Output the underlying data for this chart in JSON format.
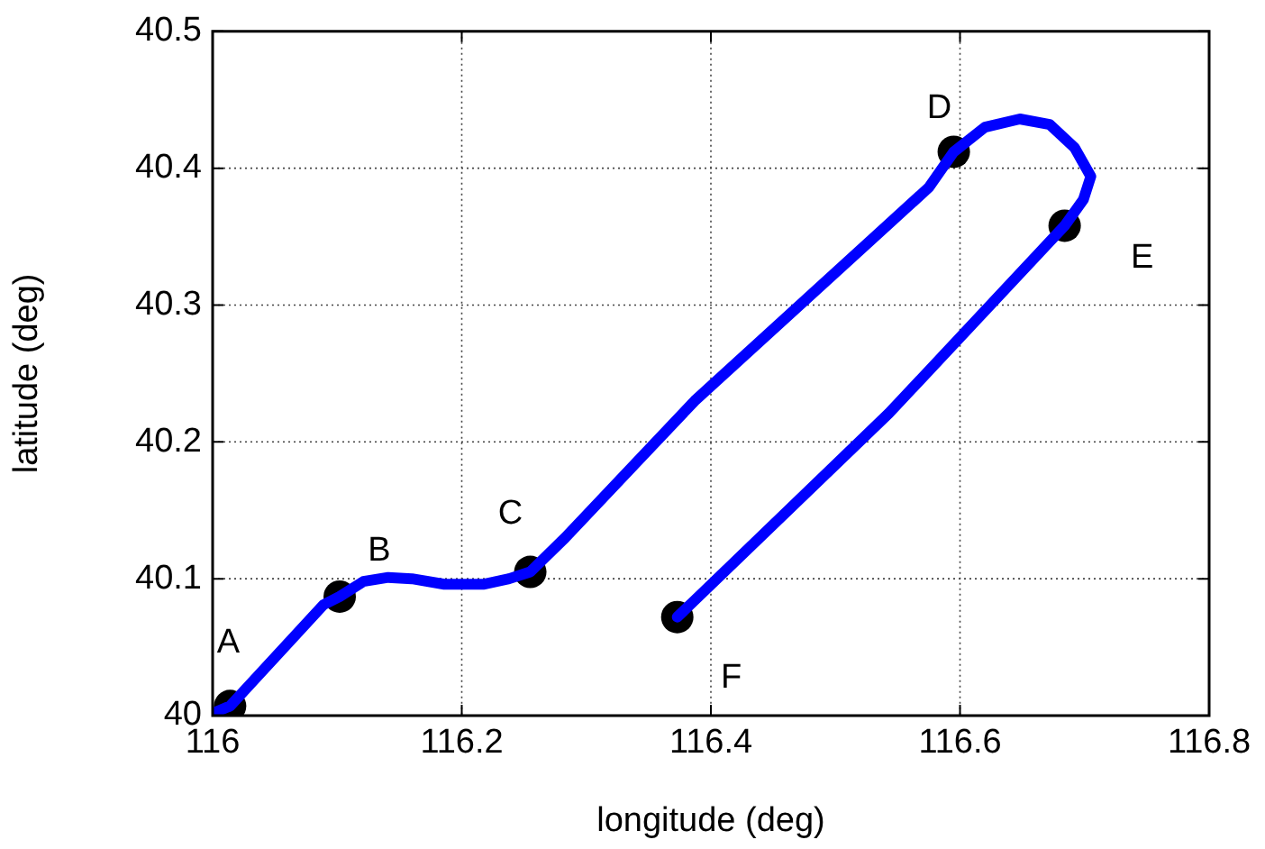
{
  "chart_data": {
    "type": "line",
    "xlabel": "longitude (deg)",
    "ylabel": "latitude (deg)",
    "xlim": [
      116,
      116.8
    ],
    "xticks": [
      116,
      116.2,
      116.4,
      116.6,
      116.8
    ],
    "ylim": [
      40,
      40.5
    ],
    "yticks": [
      40,
      40.1,
      40.2,
      40.3,
      40.4,
      40.5
    ],
    "grid": true,
    "line_style": "solid",
    "series": [
      {
        "type": "line",
        "color": "#0000ff",
        "marker": "none",
        "x": [
          116.001,
          116.014,
          116.089,
          116.102,
          116.121,
          116.141,
          116.16,
          116.186,
          116.218,
          116.238,
          116.255,
          116.283,
          116.387,
          116.575,
          116.595,
          116.62,
          116.648,
          116.672,
          116.692,
          116.705,
          116.699,
          116.684,
          116.543,
          116.373
        ],
        "values": [
          40.002,
          40.007,
          40.081,
          40.087,
          40.098,
          40.101,
          40.1,
          40.096,
          40.096,
          40.1,
          40.105,
          40.13,
          40.23,
          40.386,
          40.412,
          40.43,
          40.436,
          40.432,
          40.415,
          40.394,
          40.377,
          40.358,
          40.221,
          40.072
        ]
      },
      {
        "type": "scatter",
        "color": "#000000",
        "marker": "circle",
        "x": [
          116.014,
          116.102,
          116.255,
          116.595,
          116.684,
          116.373
        ],
        "values": [
          40.007,
          40.087,
          40.105,
          40.412,
          40.358,
          40.072
        ]
      }
    ],
    "annotations": [
      {
        "text": "A",
        "x": 116.014,
        "y": 40.007
      },
      {
        "text": "B",
        "x": 116.102,
        "y": 40.087
      },
      {
        "text": "C",
        "x": 116.255,
        "y": 40.105
      },
      {
        "text": "D",
        "x": 116.595,
        "y": 40.412
      },
      {
        "text": "E",
        "x": 116.684,
        "y": 40.358
      },
      {
        "text": "F",
        "x": 116.373,
        "y": 40.072
      }
    ]
  }
}
